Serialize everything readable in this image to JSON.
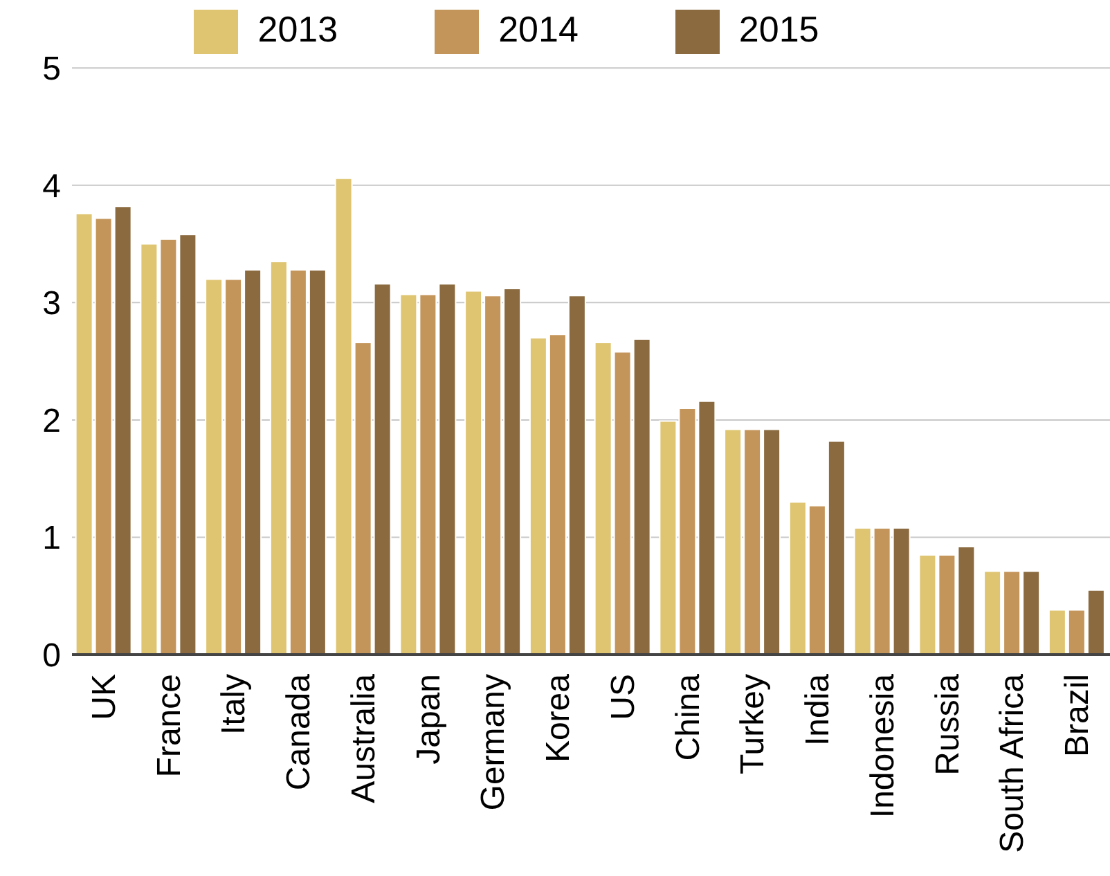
{
  "chart_data": {
    "type": "bar",
    "categories": [
      "UK",
      "France",
      "Italy",
      "Canada",
      "Australia",
      "Japan",
      "Germany",
      "Korea",
      "US",
      "China",
      "Turkey",
      "India",
      "Indonesia",
      "Russia",
      "South Africa",
      "Brazil"
    ],
    "series": [
      {
        "name": "2013",
        "color": "#dfc571",
        "values": [
          3.76,
          3.5,
          3.2,
          3.35,
          4.06,
          3.07,
          3.1,
          2.7,
          2.66,
          1.99,
          1.92,
          1.3,
          1.08,
          0.85,
          0.71,
          0.38
        ]
      },
      {
        "name": "2014",
        "color": "#c4955a",
        "values": [
          3.72,
          3.54,
          3.2,
          3.28,
          2.66,
          3.07,
          3.06,
          2.73,
          2.58,
          2.1,
          1.92,
          1.27,
          1.08,
          0.85,
          0.71,
          0.38
        ]
      },
      {
        "name": "2015",
        "color": "#8a6a3e",
        "values": [
          3.82,
          3.58,
          3.28,
          3.28,
          3.16,
          3.16,
          3.12,
          3.06,
          2.69,
          2.16,
          1.92,
          1.82,
          1.08,
          0.92,
          0.71,
          0.55
        ]
      }
    ],
    "ylim": [
      0,
      5
    ],
    "yticks": [
      0,
      1,
      2,
      3,
      4,
      5
    ],
    "grid": "y",
    "legend": "top"
  }
}
